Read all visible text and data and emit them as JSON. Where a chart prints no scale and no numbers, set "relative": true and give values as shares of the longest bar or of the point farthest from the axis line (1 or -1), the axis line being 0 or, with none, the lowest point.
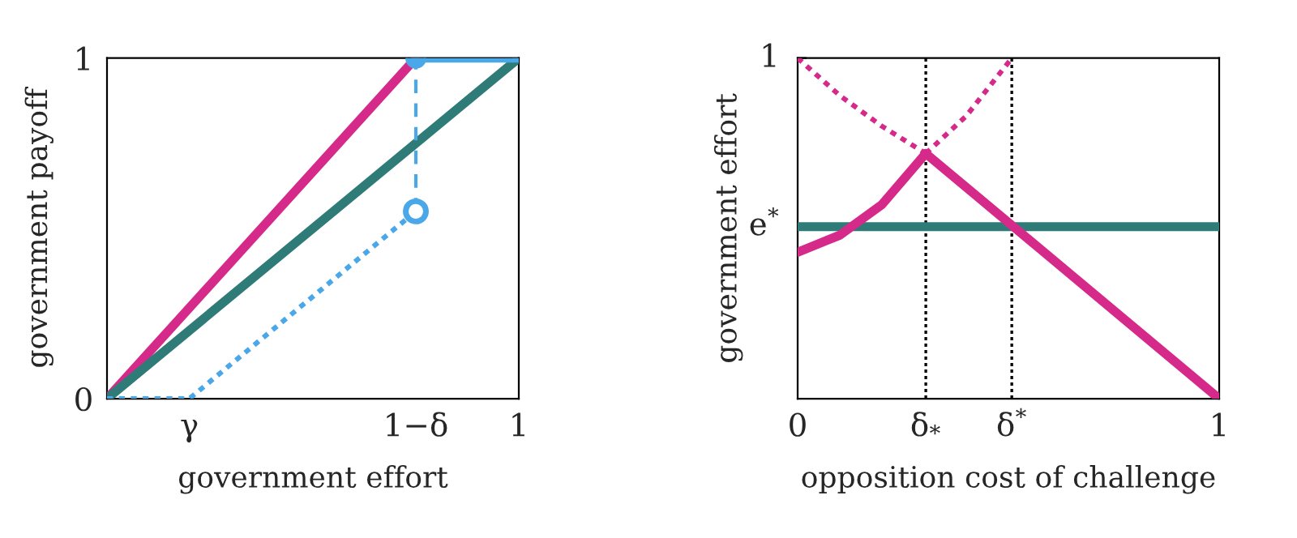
{
  "chart_data": [
    {
      "type": "line",
      "xlabel": "government effort",
      "ylabel": "government payoff",
      "xlim": [
        0,
        1
      ],
      "ylim": [
        0,
        1
      ],
      "xticks": [
        {
          "value": 0.2,
          "label": "γ"
        },
        {
          "value": 0.75,
          "label": "1−δ"
        },
        1
      ],
      "yticks": [
        0,
        1
      ],
      "grid": false,
      "legend": false,
      "series": [
        {
          "color": "#d62a8a",
          "line_style": "solid",
          "x": [
            0,
            0.75
          ],
          "values": [
            0,
            1
          ]
        },
        {
          "color": "#2e7b78",
          "line_style": "solid",
          "x": [
            0,
            1
          ],
          "values": [
            0,
            1
          ]
        },
        {
          "color": "#4aa8e8",
          "line_style": "dotted",
          "x": [
            0,
            0.2,
            0.75
          ],
          "values": [
            0,
            0,
            0.55
          ]
        },
        {
          "color": "#4aa8e8",
          "line_style": "dashed",
          "x": [
            0.75,
            0.75
          ],
          "values": [
            0.55,
            1
          ]
        },
        {
          "color": "#4aa8e8",
          "line_style": "solid",
          "x": [
            0.75,
            1
          ],
          "values": [
            1,
            1
          ]
        },
        {
          "type": "scatter",
          "color": "#4aa8e8",
          "marker": "circle",
          "x": [
            0.75
          ],
          "values": [
            1
          ]
        },
        {
          "color": "#4aa8e8",
          "line_style": "none",
          "marker": "circle",
          "x": [
            0.75
          ],
          "values": [
            0.55
          ]
        }
      ]
    },
    {
      "type": "line",
      "relative": true,
      "xlabel": "opposition cost of challenge",
      "ylabel": "government effort",
      "xlim": [
        0,
        1
      ],
      "xticks": [
        0,
        {
          "value": 0.304,
          "label": "δ$_{*}$"
        },
        {
          "value": 0.508,
          "label": "δ$^{*}$"
        },
        1
      ],
      "grid": false,
      "legend": false,
      "annotations": [
        {
          "text": "e$^{*}$",
          "x": 0,
          "y": 0.505
        },
        {
          "text": "1",
          "x": 0,
          "y": 1
        }
      ],
      "ref_lines": [
        {
          "axis": "x",
          "value": 0.304,
          "label": null,
          "color": "#000000",
          "line_style": "dotted"
        },
        {
          "axis": "x",
          "value": 0.508,
          "label": null,
          "color": "#000000",
          "line_style": "dotted"
        }
      ],
      "series": [
        {
          "color": "#2e7b78",
          "line_style": "solid",
          "x": [
            0,
            1
          ],
          "values": [
            0.505,
            0.505
          ]
        },
        {
          "color": "#d62a8a",
          "line_style": "dotted",
          "x": [
            0,
            0.1,
            0.2,
            0.304
          ],
          "values": [
            1,
            0.89,
            0.8,
            0.72
          ]
        },
        {
          "color": "#d62a8a",
          "line_style": "dotted",
          "x": [
            0.304,
            0.4,
            0.508
          ],
          "values": [
            0.72,
            0.83,
            1
          ]
        },
        {
          "color": "#d62a8a",
          "line_style": "solid",
          "x": [
            0,
            0.1,
            0.2,
            0.304,
            1
          ],
          "values": [
            0.43,
            0.48,
            0.57,
            0.72,
            0
          ]
        }
      ]
    }
  ]
}
